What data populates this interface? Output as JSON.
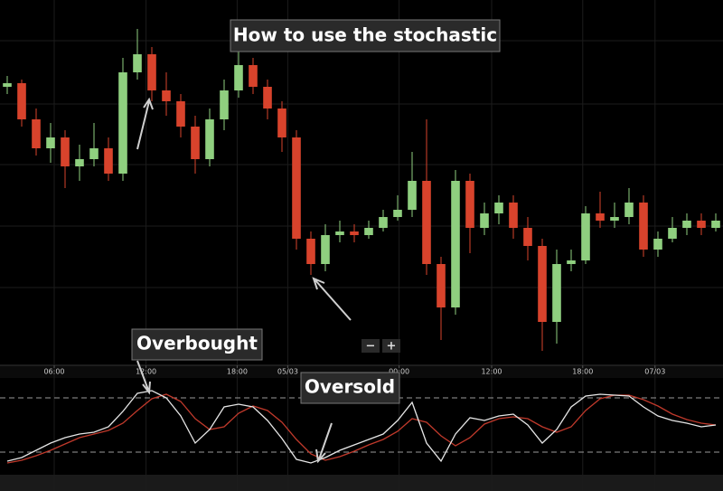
{
  "chart_data": [
    {
      "type": "candlestick",
      "title": "How to use the stochastic",
      "open": [
        76,
        77,
        67,
        59,
        62,
        54,
        56,
        59,
        52,
        80,
        85,
        75,
        72,
        65,
        56,
        67,
        75,
        82,
        76,
        70,
        62,
        34,
        27,
        35,
        36,
        35,
        37,
        40,
        42,
        50,
        27,
        15,
        50,
        37,
        41,
        44,
        37,
        32,
        11,
        27,
        28,
        41,
        39,
        40,
        44,
        31,
        34,
        37,
        39,
        37
      ],
      "high": [
        79,
        78,
        70,
        66,
        64,
        60,
        66,
        62,
        84,
        92,
        87,
        80,
        74,
        68,
        70,
        78,
        88,
        84,
        78,
        72,
        64,
        36,
        38,
        39,
        38,
        39,
        42,
        46,
        58,
        67,
        29,
        53,
        52,
        44,
        46,
        46,
        40,
        34,
        31,
        31,
        43,
        47,
        44,
        48,
        46,
        36,
        40,
        41,
        41,
        41
      ],
      "low": [
        74,
        65,
        57,
        55,
        48,
        50,
        54,
        50,
        50,
        78,
        72,
        68,
        62,
        52,
        54,
        64,
        73,
        74,
        67,
        58,
        31,
        24,
        25,
        33,
        33,
        34,
        36,
        39,
        40,
        24,
        6,
        13,
        30,
        35,
        38,
        34,
        28,
        3,
        5,
        25,
        27,
        37,
        37,
        38,
        29,
        29,
        33,
        35,
        35,
        36
      ],
      "close": [
        77,
        67,
        59,
        62,
        54,
        56,
        59,
        52,
        80,
        85,
        75,
        72,
        65,
        56,
        67,
        75,
        82,
        76,
        70,
        62,
        34,
        27,
        35,
        36,
        35,
        37,
        40,
        42,
        50,
        27,
        15,
        50,
        37,
        41,
        44,
        37,
        32,
        11,
        27,
        28,
        41,
        39,
        40,
        44,
        31,
        34,
        37,
        39,
        37,
        39
      ],
      "up_color": "#8fcf7f",
      "down_color": "#d8432c",
      "xlim": [
        -0.5,
        49.5
      ],
      "ylim": [
        0,
        100
      ],
      "xticks": [
        {
          "value": 3.25,
          "label": "06:00"
        },
        {
          "value": 9.6,
          "label": "12:00"
        },
        {
          "value": 15.9,
          "label": "18:00"
        },
        {
          "value": 19.4,
          "label": "05/03"
        },
        {
          "value": 27.1,
          "label": "00:00"
        },
        {
          "value": 33.5,
          "label": "12:00"
        },
        {
          "value": 39.8,
          "label": "18:00"
        },
        {
          "value": 44.8,
          "label": "07/03"
        }
      ],
      "grid": true
    },
    {
      "type": "line",
      "annotations": [
        "Overbought",
        "Oversold"
      ],
      "series": [
        {
          "color": "#e6e6e6",
          "values": [
            10,
            14,
            22,
            30,
            36,
            40,
            42,
            48,
            65,
            85,
            88,
            80,
            60,
            30,
            45,
            70,
            73,
            70,
            55,
            35,
            12,
            8,
            14,
            22,
            28,
            34,
            40,
            55,
            75,
            30,
            10,
            40,
            58,
            55,
            60,
            62,
            50,
            30,
            45,
            70,
            82,
            84,
            83,
            82,
            70,
            60,
            55,
            52,
            48,
            50
          ]
        },
        {
          "color": "#c0392b",
          "values": [
            8,
            11,
            16,
            22,
            29,
            36,
            40,
            44,
            52,
            66,
            79,
            84,
            76,
            57,
            45,
            48,
            63,
            71,
            66,
            53,
            34,
            18,
            11,
            15,
            21,
            28,
            34,
            43,
            57,
            53,
            38,
            27,
            36,
            51,
            57,
            59,
            57,
            48,
            42,
            48,
            66,
            79,
            83,
            83,
            78,
            71,
            62,
            56,
            52,
            50
          ]
        }
      ],
      "reference_lines": [
        80,
        20
      ],
      "xlim": [
        -0.5,
        49.5
      ],
      "ylim": [
        0,
        100
      ]
    }
  ],
  "controls": [
    "−",
    "+"
  ]
}
